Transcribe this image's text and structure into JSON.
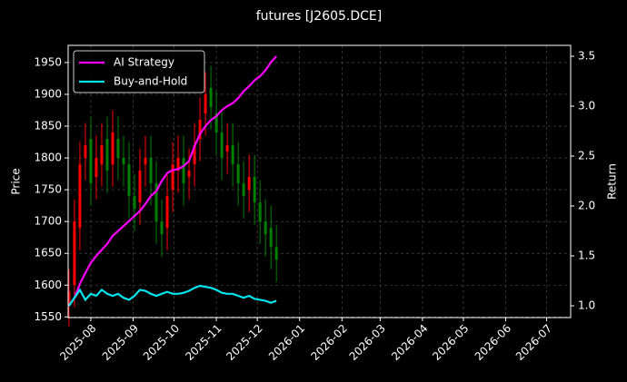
{
  "chart_data": {
    "type": "candlestick",
    "title": "futures [J2605.DCE]",
    "ylabel": "Price",
    "y2label": "Return",
    "x": [
      -16,
      -12,
      -8,
      -4,
      0,
      4,
      8,
      12,
      16,
      20,
      24,
      28,
      32,
      36,
      40,
      44,
      48,
      52,
      56,
      60,
      64,
      68,
      72,
      76,
      80,
      84,
      88,
      92,
      96,
      100,
      104,
      108,
      112,
      116,
      120,
      124,
      128,
      132,
      136
    ],
    "open": [
      1570,
      1600,
      1690,
      1800,
      1830,
      1770,
      1790,
      1830,
      1790,
      1830,
      1800,
      1790,
      1740,
      1730,
      1790,
      1800,
      1760,
      1700,
      1690,
      1750,
      1780,
      1800,
      1770,
      1790,
      1830,
      1870,
      1910,
      1870,
      1840,
      1810,
      1820,
      1790,
      1760,
      1750,
      1770,
      1730,
      1700,
      1690,
      1660
    ],
    "high": [
      1625,
      1735,
      1825,
      1855,
      1865,
      1835,
      1855,
      1865,
      1875,
      1865,
      1835,
      1825,
      1775,
      1815,
      1835,
      1835,
      1795,
      1735,
      1775,
      1825,
      1835,
      1835,
      1815,
      1855,
      1895,
      1935,
      1945,
      1905,
      1875,
      1855,
      1855,
      1825,
      1795,
      1805,
      1805,
      1765,
      1735,
      1725,
      1695
    ],
    "low": [
      1535,
      1565,
      1655,
      1765,
      1725,
      1735,
      1755,
      1745,
      1755,
      1765,
      1755,
      1705,
      1685,
      1695,
      1755,
      1725,
      1665,
      1645,
      1655,
      1715,
      1745,
      1725,
      1735,
      1755,
      1795,
      1835,
      1845,
      1805,
      1765,
      1775,
      1755,
      1725,
      1705,
      1715,
      1695,
      1665,
      1645,
      1625,
      1605
    ],
    "close": [
      1590,
      1700,
      1790,
      1820,
      1760,
      1800,
      1820,
      1780,
      1840,
      1800,
      1790,
      1740,
      1720,
      1780,
      1800,
      1760,
      1700,
      1680,
      1740,
      1790,
      1800,
      1760,
      1780,
      1820,
      1860,
      1900,
      1880,
      1840,
      1800,
      1820,
      1790,
      1760,
      1740,
      1770,
      1730,
      1700,
      1680,
      1660,
      1640
    ],
    "up_color": "#ff0000",
    "down_color": "#008000",
    "series": [
      {
        "name": "AI Strategy",
        "color": "#ff00ff",
        "axis": "y2",
        "values": [
          1.0,
          1.08,
          1.22,
          1.33,
          1.43,
          1.5,
          1.56,
          1.62,
          1.7,
          1.75,
          1.8,
          1.85,
          1.9,
          1.95,
          2.02,
          2.1,
          2.15,
          2.25,
          2.33,
          2.36,
          2.37,
          2.4,
          2.45,
          2.6,
          2.72,
          2.8,
          2.86,
          2.9,
          2.96,
          3.0,
          3.03,
          3.08,
          3.15,
          3.2,
          3.26,
          3.3,
          3.36,
          3.44,
          3.5
        ]
      },
      {
        "name": "Buy-and-Hold",
        "color": "#00e5ee",
        "axis": "y2",
        "values": [
          1.0,
          1.08,
          1.16,
          1.06,
          1.12,
          1.1,
          1.16,
          1.12,
          1.1,
          1.12,
          1.08,
          1.06,
          1.1,
          1.16,
          1.15,
          1.12,
          1.1,
          1.12,
          1.14,
          1.12,
          1.12,
          1.13,
          1.15,
          1.18,
          1.2,
          1.19,
          1.18,
          1.16,
          1.13,
          1.12,
          1.12,
          1.1,
          1.08,
          1.1,
          1.07,
          1.06,
          1.05,
          1.03,
          1.05
        ]
      }
    ],
    "xlim": [
      -16.6,
      351.6
    ],
    "xticks": [
      {
        "value": 0,
        "label": "2025-08"
      },
      {
        "value": 31,
        "label": "2025-09"
      },
      {
        "value": 61,
        "label": "2025-10"
      },
      {
        "value": 92,
        "label": "2025-11"
      },
      {
        "value": 122,
        "label": "2025-12"
      },
      {
        "value": 153,
        "label": "2026-01"
      },
      {
        "value": 184,
        "label": "2026-02"
      },
      {
        "value": 212,
        "label": "2026-03"
      },
      {
        "value": 243,
        "label": "2026-04"
      },
      {
        "value": 273,
        "label": "2026-05"
      },
      {
        "value": 304,
        "label": "2026-06"
      },
      {
        "value": 334,
        "label": "2026-07"
      }
    ],
    "ylim": [
      1549,
      1977
    ],
    "yticks": [
      1550,
      1600,
      1650,
      1700,
      1750,
      1800,
      1850,
      1900,
      1950
    ],
    "y2lim": [
      0.882,
      3.609
    ],
    "y2ticks": [
      {
        "value": 1,
        "label": "1.0"
      },
      {
        "value": 1.5,
        "label": "1.5"
      },
      {
        "value": 2,
        "label": "2.0"
      },
      {
        "value": 2.5,
        "label": "2.5"
      },
      {
        "value": 3,
        "label": "3.0"
      },
      {
        "value": 3.5,
        "label": "3.5"
      }
    ],
    "grid": true,
    "legend": "upper left"
  }
}
